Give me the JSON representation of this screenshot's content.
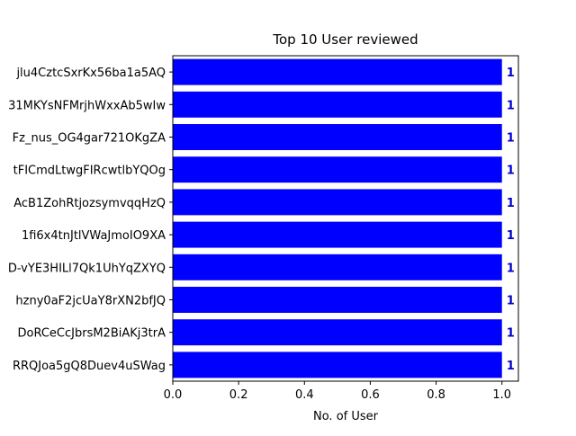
{
  "chart_data": {
    "type": "bar",
    "orientation": "horizontal",
    "title": "Top 10 User reviewed",
    "xlabel": "No. of User",
    "ylabel": "",
    "categories": [
      "jlu4CztcSxrKx56ba1a5AQ",
      "31MKYsNFMrjhWxxAb5wIw",
      "Fz_nus_OG4gar721OKgZA",
      "tFICmdLtwgFIRcwtlbYQOg",
      "AcB1ZohRtjozsymvqqHzQ",
      "1fi6x4tnJtlVWaJmoIO9XA",
      "D-vYE3HILl7Qk1UhYqZXYQ",
      "hzny0aF2jcUaY8rXN2bfJQ",
      "DoRCeCcJbrsM2BiAKj3trA",
      "RRQJoa5gQ8Duev4uSWag"
    ],
    "values": [
      1,
      1,
      1,
      1,
      1,
      1,
      1,
      1,
      1,
      1
    ],
    "data_labels": [
      "1",
      "1",
      "1",
      "1",
      "1",
      "1",
      "1",
      "1",
      "1",
      "1"
    ],
    "xlim": [
      0,
      1.05
    ],
    "xticks": [
      "0.0",
      "0.2",
      "0.4",
      "0.6",
      "0.8",
      "1.0"
    ],
    "xtick_values": [
      0,
      0.2,
      0.4,
      0.6,
      0.8,
      1.0
    ],
    "bar_color": "#0000ff",
    "label_color": "#0000cc",
    "grid": false
  }
}
